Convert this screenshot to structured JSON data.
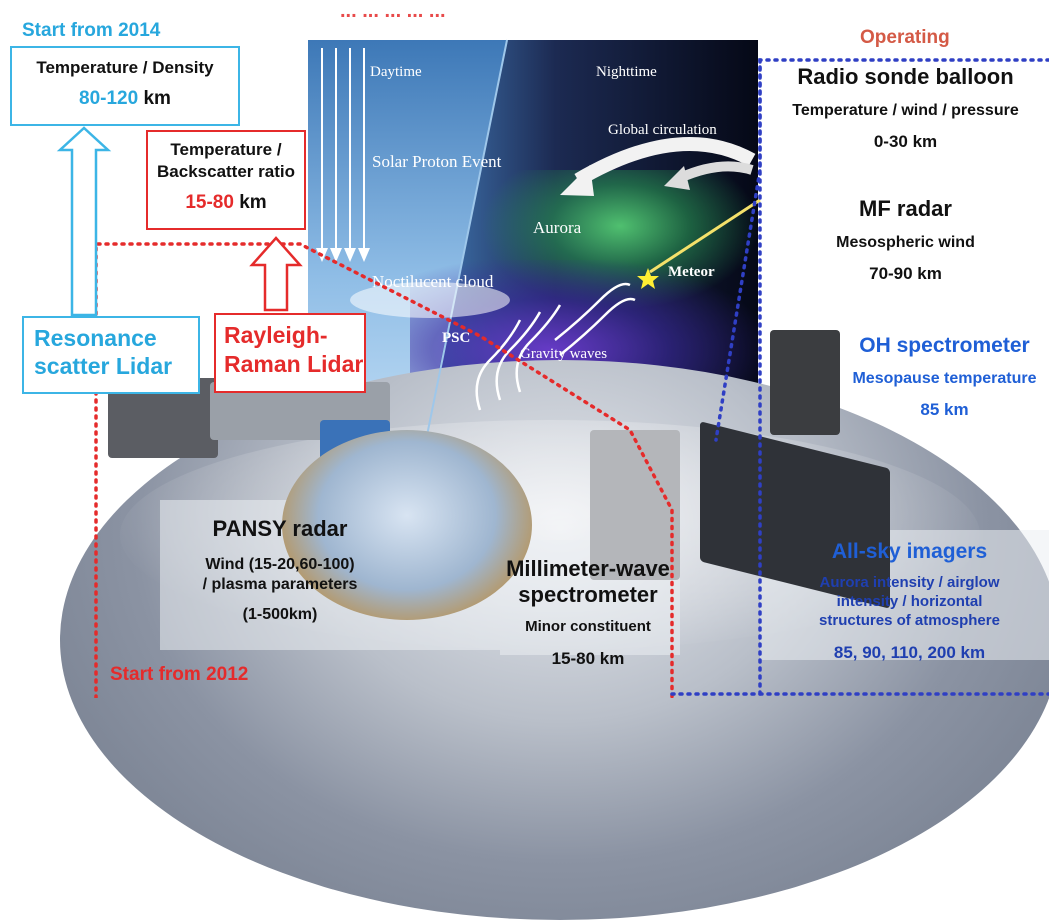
{
  "header": {
    "top_partial_text": "... ... ... ... ...",
    "start_2014": "Start from 2014",
    "operating": "Operating",
    "start_2012": "Start from 2012"
  },
  "sky": {
    "daytime": "Daytime",
    "nighttime": "Nighttime",
    "global_circulation": "Global circulation",
    "solar_proton": "Solar Proton Event",
    "aurora": "Aurora",
    "meteor": "Meteor",
    "noctilucent": "Noctilucent cloud",
    "psc": "PSC",
    "gravity": "Gravity waves"
  },
  "resonance": {
    "measure": "Temperature / Density",
    "range": "80-120",
    "unit": "km",
    "name_line1": "Resonance",
    "name_line2": "scatter Lidar"
  },
  "rayleigh": {
    "measure_line1": "Temperature /",
    "measure_line2": "Backscatter ratio",
    "range": "15-80",
    "unit": "km",
    "name_line1": "Rayleigh-",
    "name_line2": "Raman Lidar"
  },
  "radiosonde": {
    "title": "Radio sonde balloon",
    "measure": "Temperature / wind / pressure",
    "range": "0-30 km"
  },
  "mf_radar": {
    "title": "MF radar",
    "measure": "Mesospheric wind",
    "range": "70-90 km"
  },
  "oh": {
    "title": "OH spectrometer",
    "measure": "Mesopause temperature",
    "range": "85 km"
  },
  "allsky": {
    "title": "All-sky imagers",
    "line1": "Aurora intensity / airglow",
    "line2": "intensity / horizontal",
    "line3": "structures of atmosphere",
    "range": "85, 90, 110, 200 km"
  },
  "pansy": {
    "title": "PANSY radar",
    "line1": "Wind (15-20,60-100)",
    "line2": "/ plasma parameters",
    "line3": "(1-500km)"
  },
  "mmwave": {
    "title_line1": "Millimeter-wave",
    "title_line2": "spectrometer",
    "measure": "Minor constituent",
    "range": "15-80 km"
  },
  "colors": {
    "cyan": "#3cb5e6",
    "red": "#e52b2b",
    "blue_dots": "#2f3fc4",
    "operating": "#d45a46"
  }
}
